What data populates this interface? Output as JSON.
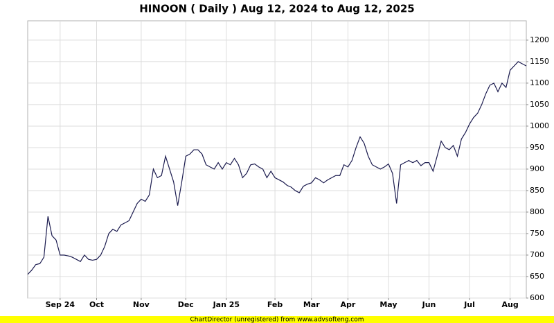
{
  "chart_data": {
    "type": "line",
    "title": "HINOON ( Daily ) Aug 12, 2024 to Aug 12, 2025",
    "footer": "ChartDirector (unregistered) from www.advsofteng.com",
    "categories": [
      null,
      null,
      null,
      null,
      null,
      null,
      null,
      null,
      "Sep 24",
      null,
      null,
      null,
      null,
      null,
      null,
      null,
      null,
      "Oct",
      null,
      null,
      null,
      null,
      null,
      null,
      null,
      null,
      null,
      null,
      "Nov",
      null,
      null,
      null,
      null,
      null,
      null,
      null,
      null,
      null,
      null,
      "Dec",
      null,
      null,
      null,
      null,
      null,
      null,
      null,
      null,
      null,
      "Jan 25",
      null,
      null,
      null,
      null,
      null,
      null,
      null,
      null,
      null,
      null,
      null,
      "Feb",
      null,
      null,
      null,
      null,
      null,
      null,
      null,
      null,
      "Mar",
      null,
      null,
      null,
      null,
      null,
      null,
      null,
      null,
      "Apr",
      null,
      null,
      null,
      null,
      null,
      null,
      null,
      null,
      null,
      "May",
      null,
      null,
      null,
      null,
      null,
      null,
      null,
      null,
      null,
      "Jun",
      null,
      null,
      null,
      null,
      null,
      null,
      null,
      null,
      null,
      "Jul",
      null,
      null,
      null,
      null,
      null,
      null,
      null,
      null,
      null,
      "Aug",
      null,
      null,
      null,
      null
    ],
    "series": [
      {
        "color": "#1a1a4e",
        "values": [
          655,
          665,
          678,
          680,
          695,
          790,
          745,
          735,
          700,
          700,
          698,
          695,
          690,
          685,
          700,
          690,
          688,
          690,
          700,
          720,
          750,
          760,
          755,
          770,
          775,
          780,
          800,
          820,
          830,
          825,
          840,
          900,
          880,
          885,
          930,
          900,
          870,
          815,
          870,
          930,
          935,
          945,
          945,
          935,
          910,
          905,
          900,
          915,
          900,
          915,
          910,
          925,
          910,
          880,
          890,
          910,
          912,
          905,
          900,
          880,
          895,
          880,
          875,
          870,
          862,
          858,
          850,
          845,
          860,
          865,
          868,
          880,
          875,
          868,
          875,
          880,
          885,
          885,
          910,
          905,
          920,
          950,
          975,
          960,
          930,
          910,
          905,
          900,
          905,
          912,
          890,
          820,
          910,
          915,
          920,
          915,
          920,
          908,
          915,
          915,
          895,
          930,
          965,
          950,
          945,
          955,
          930,
          970,
          985,
          1005,
          1020,
          1030,
          1050,
          1075,
          1095,
          1100,
          1080,
          1100,
          1090,
          1130,
          1140,
          1150,
          1145,
          1140
        ]
      }
    ],
    "ylim": [
      600,
      1245
    ],
    "yticks": [
      600,
      650,
      700,
      750,
      800,
      850,
      900,
      950,
      1000,
      1050,
      1100,
      1150,
      1200
    ],
    "grid": true
  }
}
